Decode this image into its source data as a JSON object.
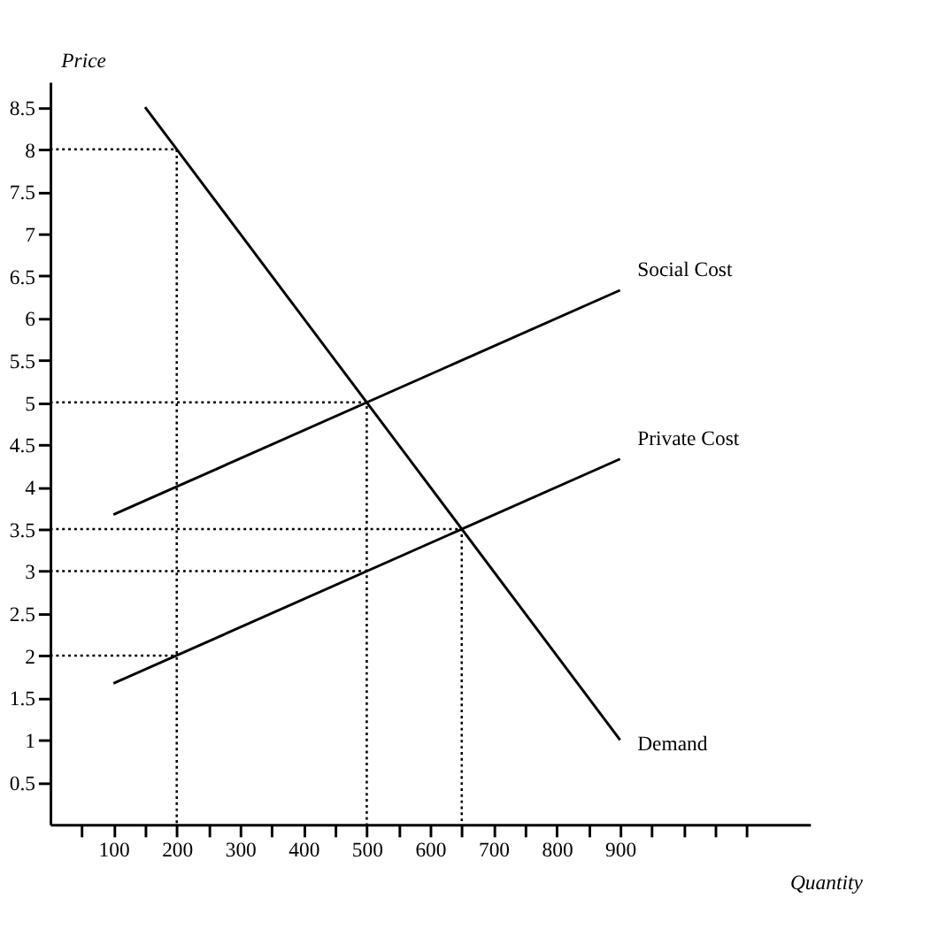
{
  "chart_data": {
    "type": "line",
    "xlabel": "Quantity",
    "ylabel": "Price",
    "xlim": [
      0,
      1200
    ],
    "ylim": [
      0,
      8.8
    ],
    "xticks": [
      {
        "value": 50,
        "label": null
      },
      100,
      {
        "value": 150,
        "label": null
      },
      200,
      {
        "value": 250,
        "label": null
      },
      300,
      {
        "value": 350,
        "label": null
      },
      400,
      {
        "value": 450,
        "label": null
      },
      500,
      {
        "value": 550,
        "label": null
      },
      600,
      {
        "value": 650,
        "label": null
      },
      700,
      {
        "value": 750,
        "label": null
      },
      800,
      {
        "value": 850,
        "label": null
      },
      900,
      {
        "value": 950,
        "label": null
      },
      {
        "value": 1000,
        "label": null
      },
      {
        "value": 1050,
        "label": null
      },
      {
        "value": 1100,
        "label": null
      }
    ],
    "yticks": [
      0.5,
      1,
      1.5,
      2,
      2.5,
      3,
      3.5,
      4,
      4.5,
      5,
      5.5,
      6,
      6.5,
      7,
      7.5,
      8,
      8.5
    ],
    "grid": false,
    "marker": "none",
    "series": [
      {
        "name": "Demand",
        "color": "#000000",
        "x": [
          150,
          900
        ],
        "values": [
          8.5,
          1
        ],
        "line_style": "solid"
      },
      {
        "name": "Social Cost",
        "color": "#000000",
        "x": [
          100,
          900
        ],
        "values": [
          3.67,
          6.33
        ],
        "line_style": "solid"
      },
      {
        "name": "Private Cost",
        "color": "#000000",
        "x": [
          100,
          900
        ],
        "values": [
          1.67,
          4.33
        ],
        "line_style": "solid"
      },
      {
        "color": "#000000",
        "x": [
          0,
          200,
          200
        ],
        "values": [
          8,
          8,
          0
        ],
        "line_style": "dotted"
      },
      {
        "color": "#000000",
        "x": [
          0,
          500,
          500
        ],
        "values": [
          5,
          5,
          0
        ],
        "line_style": "dotted"
      },
      {
        "color": "#000000",
        "x": [
          0,
          650,
          650
        ],
        "values": [
          3.5,
          3.5,
          0
        ],
        "line_style": "dotted"
      },
      {
        "color": "#000000",
        "x": [
          0,
          500
        ],
        "values": [
          3,
          3
        ],
        "line_style": "dotted"
      },
      {
        "color": "#000000",
        "x": [
          0,
          200
        ],
        "values": [
          2,
          2
        ],
        "line_style": "dotted"
      }
    ]
  }
}
